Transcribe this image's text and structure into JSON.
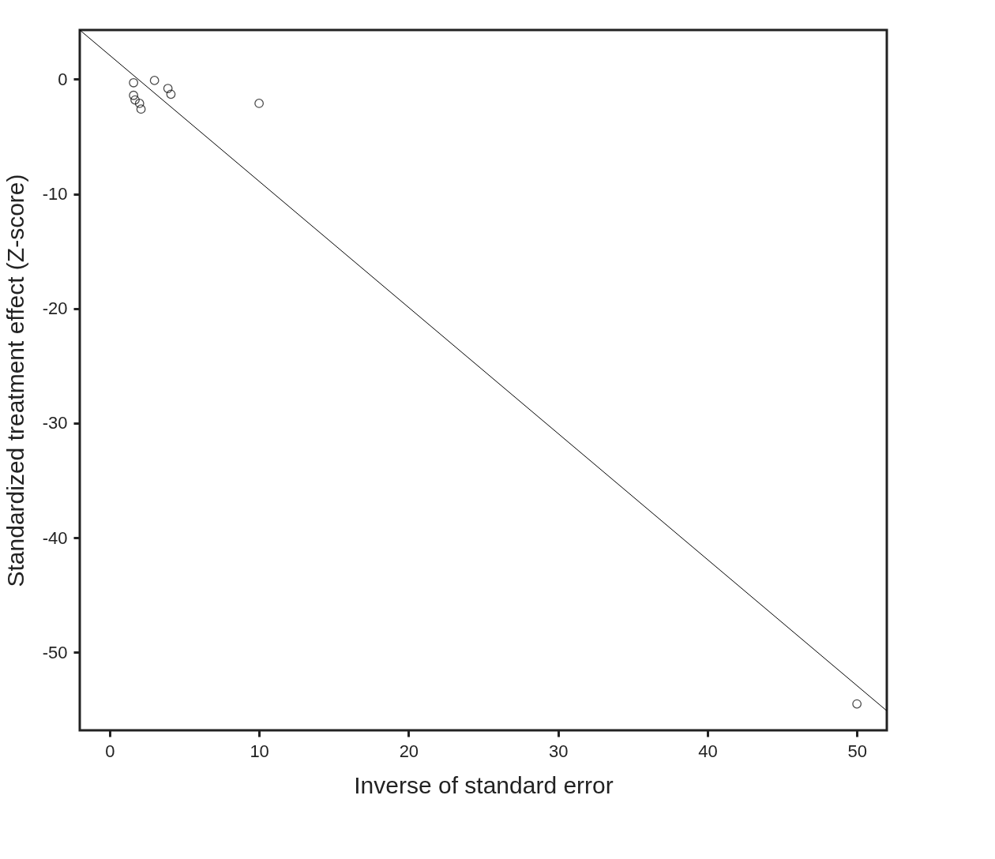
{
  "chart_data": {
    "type": "scatter",
    "xlabel": "Inverse of standard error",
    "ylabel": "Standardized treatment effect (Z-score)",
    "xlim": [
      -2,
      52
    ],
    "ylim": [
      -56.8,
      4.3
    ],
    "xticks": [
      0,
      10,
      20,
      30,
      40,
      50
    ],
    "yticks": [
      0,
      -10,
      -20,
      -30,
      -40,
      -50
    ],
    "grid": false,
    "legend": false,
    "marker": "circle",
    "series": [
      {
        "type": "scatter",
        "color": "#000000",
        "x": [
          1.6,
          1.6,
          1.7,
          2.0,
          2.1,
          3.0,
          3.9,
          4.1,
          10.0,
          50.0
        ],
        "values": [
          -0.3,
          -1.4,
          -1.8,
          -2.1,
          -2.6,
          -0.1,
          -0.8,
          -1.3,
          -2.1,
          -54.5
        ]
      },
      {
        "type": "line",
        "color": "#000000",
        "line_style": "solid",
        "marker": "none",
        "x": [
          -2,
          52
        ],
        "values": [
          4.3,
          -55.1
        ]
      }
    ]
  }
}
